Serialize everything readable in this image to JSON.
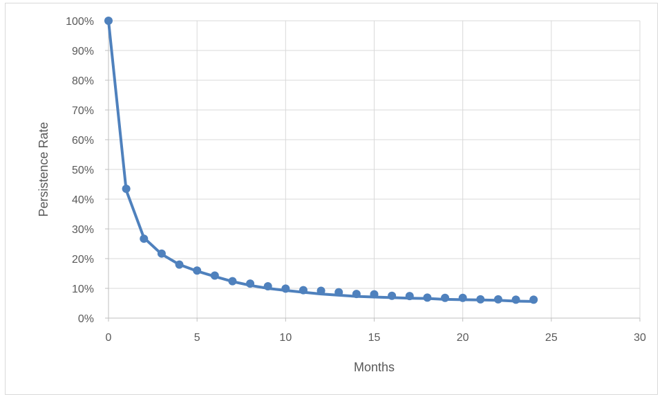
{
  "chart_data": {
    "type": "line",
    "title": "",
    "xlabel": "Months",
    "ylabel": "Persistence Rate",
    "xlim": [
      0,
      30
    ],
    "ylim": [
      0,
      1
    ],
    "x_ticks": [
      0,
      5,
      10,
      15,
      20,
      25,
      30
    ],
    "y_ticks": [
      0,
      0.1,
      0.2,
      0.3,
      0.4,
      0.5,
      0.6,
      0.7,
      0.8,
      0.9,
      1.0
    ],
    "x_tick_labels": [
      "0",
      "5",
      "10",
      "15",
      "20",
      "25",
      "30"
    ],
    "y_tick_labels": [
      "0%",
      "10%",
      "20%",
      "30%",
      "40%",
      "50%",
      "60%",
      "70%",
      "80%",
      "90%",
      "100%"
    ],
    "grid": true,
    "legend": "none",
    "series": [
      {
        "type": "scatter",
        "color": "#4f81bd",
        "x": [
          0,
          1,
          2,
          3,
          4,
          5,
          6,
          7,
          8,
          9,
          10,
          11,
          12,
          13,
          14,
          15,
          16,
          17,
          18,
          19,
          20,
          21,
          22,
          23,
          24
        ],
        "y": [
          1.0,
          0.435,
          0.267,
          0.217,
          0.18,
          0.16,
          0.143,
          0.124,
          0.116,
          0.107,
          0.099,
          0.094,
          0.092,
          0.087,
          0.081,
          0.08,
          0.075,
          0.074,
          0.069,
          0.068,
          0.068,
          0.063,
          0.063,
          0.062,
          0.062
        ]
      },
      {
        "type": "line",
        "color": "#4f81bd",
        "x": [
          0,
          1,
          2,
          3,
          4,
          5,
          6,
          7,
          8,
          9,
          10,
          11,
          12,
          13,
          14,
          15,
          16,
          17,
          18,
          19,
          20,
          21,
          22,
          23,
          24
        ],
        "y": [
          1.0,
          0.43,
          0.27,
          0.215,
          0.18,
          0.158,
          0.14,
          0.123,
          0.11,
          0.1,
          0.093,
          0.087,
          0.081,
          0.077,
          0.073,
          0.071,
          0.069,
          0.067,
          0.066,
          0.063,
          0.062,
          0.061,
          0.06,
          0.057,
          0.056
        ]
      }
    ],
    "colors": {
      "gridline": "#d9d9d9",
      "axis": "#bfbfbf",
      "text": "#595959",
      "series": "#4f81bd"
    }
  }
}
